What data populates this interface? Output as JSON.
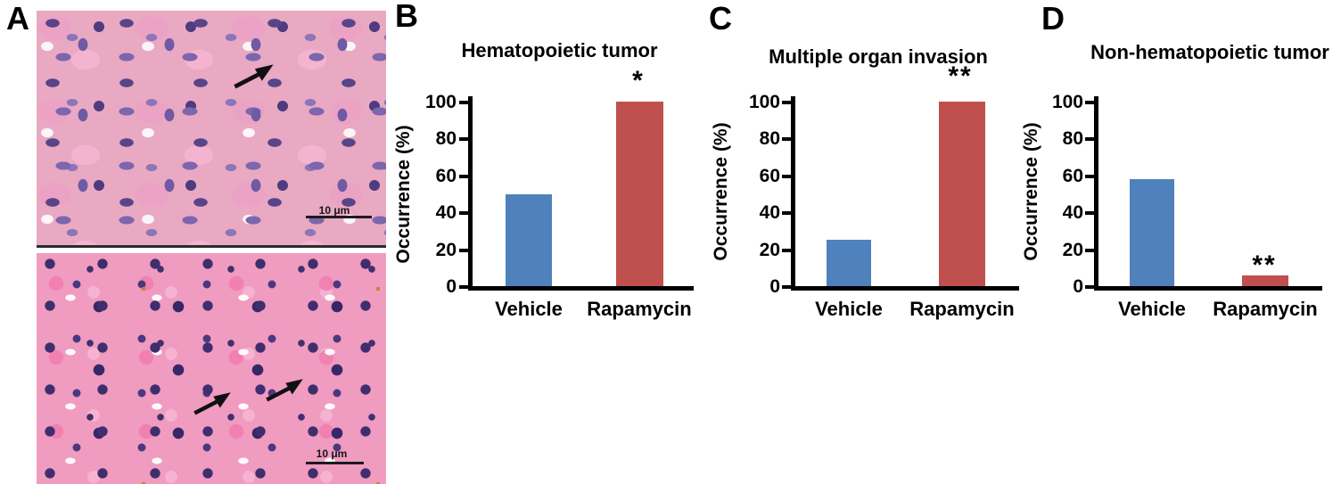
{
  "panels": {
    "a": "A",
    "b": "B",
    "c": "C",
    "d": "D"
  },
  "histology": {
    "scalebar_label": "10 μm"
  },
  "colors": {
    "vehicle_bar": "#4F81BD",
    "rapamycin_bar": "#C0504D",
    "axis": "#000000"
  },
  "chart_data": [
    {
      "panel": "B",
      "type": "bar",
      "title": "Hematopoietic tumor",
      "xlabel": "",
      "ylabel": "Occurrence (%)",
      "categories": [
        "Vehicle",
        "Rapamycin"
      ],
      "values": [
        50,
        100
      ],
      "yticks": [
        100,
        80,
        60,
        40,
        20,
        0
      ],
      "ylim": [
        0,
        100
      ],
      "grid": false,
      "legend": "none",
      "bar_colors": [
        "#4F81BD",
        "#C0504D"
      ],
      "significance": {
        "on": "Rapamycin",
        "marker": "*"
      }
    },
    {
      "panel": "C",
      "type": "bar",
      "title": "Multiple organ invasion",
      "xlabel": "",
      "ylabel": "Occurrence (%)",
      "categories": [
        "Vehicle",
        "Rapamycin"
      ],
      "values": [
        25,
        100
      ],
      "yticks": [
        100,
        80,
        60,
        40,
        20,
        0
      ],
      "ylim": [
        0,
        100
      ],
      "grid": false,
      "legend": "none",
      "bar_colors": [
        "#4F81BD",
        "#C0504D"
      ],
      "significance": {
        "on": "Rapamycin",
        "marker": "**"
      }
    },
    {
      "panel": "D",
      "type": "bar",
      "title": "Non-hematopoietic tumor",
      "xlabel": "",
      "ylabel": "Occurrence (%)",
      "categories": [
        "Vehicle",
        "Rapamycin"
      ],
      "values": [
        58,
        6
      ],
      "yticks": [
        100,
        80,
        60,
        40,
        20,
        0
      ],
      "ylim": [
        0,
        100
      ],
      "grid": false,
      "legend": "none",
      "bar_colors": [
        "#4F81BD",
        "#C0504D"
      ],
      "significance": {
        "on": "Rapamycin",
        "marker": "**"
      }
    }
  ]
}
